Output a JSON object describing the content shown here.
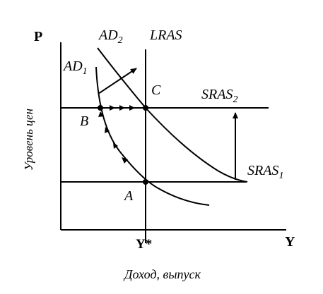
{
  "axes": {
    "y_axis_letter": "P",
    "x_axis_letter": "Y",
    "y_axis_caption": "Уровень цен",
    "x_axis_caption": "Доход, выпуск",
    "x_tick_label": "Y*"
  },
  "curves": {
    "ad1": "AD",
    "ad1_sub": "1",
    "ad2": "AD",
    "ad2_sub": "2",
    "lras": "LRAS",
    "sras1": "SRAS",
    "sras1_sub": "1",
    "sras2": "SRAS",
    "sras2_sub": "2"
  },
  "points": {
    "a": "A",
    "b": "B",
    "c": "C"
  }
}
